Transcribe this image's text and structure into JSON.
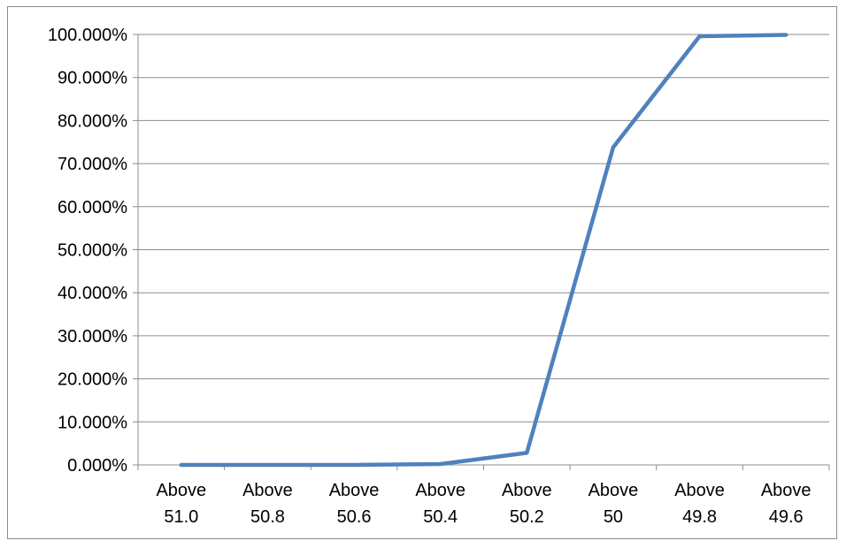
{
  "chart_data": {
    "type": "line",
    "title": "",
    "xlabel": "",
    "ylabel": "",
    "categories": [
      [
        "Above",
        "51.0"
      ],
      [
        "Above",
        "50.8"
      ],
      [
        "Above",
        "50.6"
      ],
      [
        "Above",
        "50.4"
      ],
      [
        "Above",
        "50.2"
      ],
      [
        "Above",
        "50"
      ],
      [
        "Above",
        "49.8"
      ],
      [
        "Above",
        "49.6"
      ]
    ],
    "series": [
      {
        "values": [
          0.0,
          0.0,
          0.0,
          0.2,
          2.8,
          73.8,
          99.6,
          99.9
        ],
        "color": "#4f81bd"
      }
    ],
    "ylim": [
      0,
      100
    ],
    "yticks": [
      "0.000%",
      "10.000%",
      "20.000%",
      "30.000%",
      "40.000%",
      "50.000%",
      "60.000%",
      "70.000%",
      "80.000%",
      "90.000%",
      "100.000%"
    ],
    "grid": true,
    "legend": "none",
    "colors": {
      "grid": "#8c8c8c",
      "axis": "#8c8c8c"
    }
  }
}
